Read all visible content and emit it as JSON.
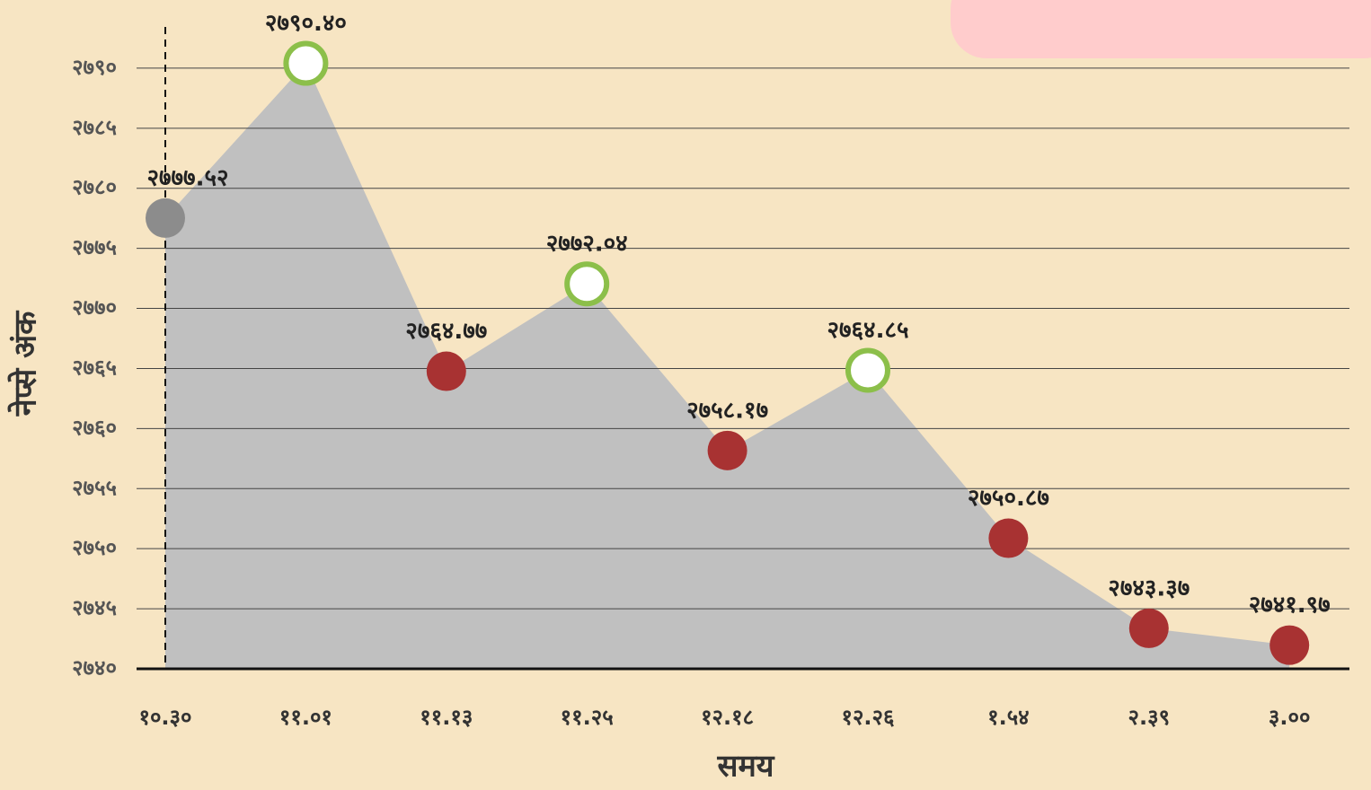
{
  "chart_data": {
    "type": "area",
    "x_label": "समय",
    "y_label": "नेप्से अंक",
    "categories": [
      "१०.३०",
      "११.०१",
      "११.१३",
      "११.२५",
      "१२.१८",
      "१२.२६",
      "१.५४",
      "२.३९",
      "३.००"
    ],
    "values": [
      2777.52,
      2790.4,
      2764.77,
      2772.04,
      2758.17,
      2764.85,
      2750.87,
      2743.37,
      2741.97
    ],
    "value_labels": [
      "२७७७.५२",
      "२७९०.४०",
      "२७६४.७७",
      "२७७२.०४",
      "२७५८.१७",
      "२७६४.८५",
      "२७५०.८७",
      "२७४३.३७",
      "२७४१.९७"
    ],
    "color": "#c0c0c0",
    "start_color": "#8c8c8c",
    "fall_color": "#a83232",
    "rise_color": "#8cbf4a",
    "ylim": [
      2740,
      2795
    ],
    "yticks": [
      {
        "value": 2740,
        "label": "२७४०"
      },
      {
        "value": 2745,
        "label": "२७४५"
      },
      {
        "value": 2750,
        "label": "२७५०"
      },
      {
        "value": 2755,
        "label": "२७५५"
      },
      {
        "value": 2760,
        "label": "२७६०"
      },
      {
        "value": 2765,
        "label": "२७६५"
      },
      {
        "value": 2770,
        "label": "२७७०"
      },
      {
        "value": 2775,
        "label": "२७७५"
      },
      {
        "value": 2780,
        "label": "२७८०"
      },
      {
        "value": 2785,
        "label": "२७८५"
      },
      {
        "value": 2790,
        "label": "२७९०"
      }
    ],
    "grid": true
  }
}
